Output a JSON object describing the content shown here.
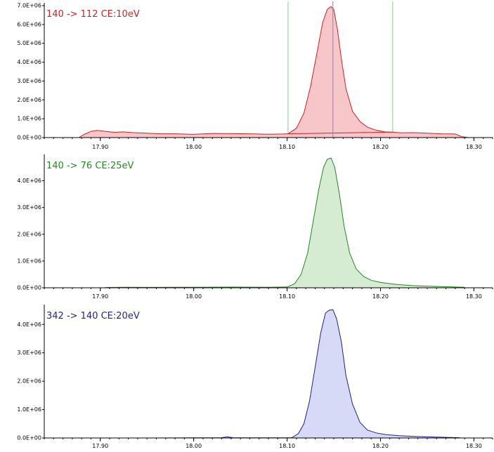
{
  "chart_data": [
    {
      "type": "area",
      "title": "140 -> 112 CE:10eV",
      "color": "#cc2222",
      "fill": "#f7c6c9",
      "xlim": [
        17.84,
        18.32
      ],
      "ylim": [
        0,
        7000000
      ],
      "x_ticks": [
        17.9,
        18.0,
        18.1,
        18.2,
        18.3
      ],
      "x_tick_labels": [
        "17.90",
        "18.00",
        "18.10",
        "18.20",
        "18.30"
      ],
      "y_ticks": [
        0,
        1000000,
        2000000,
        3000000,
        4000000,
        5000000,
        6000000,
        7000000
      ],
      "y_tick_labels": [
        "0.0E+00",
        "1.0E+06",
        "2.0E+06",
        "3.0E+06",
        "4.0E+06",
        "5.0E+06",
        "6.0E+06",
        "7.0E+06"
      ],
      "integration_start": 18.101,
      "integration_end": 18.213,
      "retention_time": 18.149,
      "series": [
        {
          "x": [
            17.877,
            17.882,
            17.89,
            17.897,
            17.905,
            17.915,
            17.925,
            17.935,
            17.95,
            17.965,
            17.98,
            18.0,
            18.02,
            18.04,
            18.06,
            18.08,
            18.095,
            18.101,
            18.11,
            18.118,
            18.125,
            18.132,
            18.138,
            18.143,
            18.147,
            18.15,
            18.154,
            18.158,
            18.163,
            18.17,
            18.178,
            18.186,
            18.195,
            18.205,
            18.213,
            18.222,
            18.235,
            18.25,
            18.265,
            18.28,
            18.287,
            18.294
          ],
          "y": [
            0,
            150000,
            330000,
            380000,
            330000,
            280000,
            300000,
            260000,
            230000,
            200000,
            200000,
            170000,
            220000,
            210000,
            200000,
            180000,
            190000,
            200000,
            500000,
            1300000,
            2700000,
            4500000,
            6100000,
            6800000,
            6950000,
            6800000,
            5700000,
            4200000,
            2600000,
            1400000,
            850000,
            550000,
            400000,
            300000,
            290000,
            250000,
            260000,
            230000,
            200000,
            190000,
            50000,
            0
          ]
        }
      ]
    },
    {
      "type": "area",
      "title": "140 -> 76 CE:25eV",
      "color": "#228822",
      "fill": "#d6ecd2",
      "xlim": [
        17.84,
        18.32
      ],
      "ylim": [
        0,
        4880000
      ],
      "x_ticks": [
        17.9,
        18.0,
        18.1,
        18.2,
        18.3
      ],
      "x_tick_labels": [
        "17.90",
        "18.00",
        "18.10",
        "18.20",
        "18.30"
      ],
      "y_ticks": [
        0,
        1000000,
        2000000,
        3000000,
        4000000
      ],
      "y_tick_labels": [
        "0.0E+00",
        "1.0E+06",
        "2.0E+06",
        "3.0E+06",
        "4.0E+06"
      ],
      "series": [
        {
          "x": [
            17.905,
            17.925,
            17.95,
            18.0,
            18.04,
            18.08,
            18.1,
            18.108,
            18.115,
            18.122,
            18.128,
            18.134,
            18.139,
            18.143,
            18.147,
            18.151,
            18.156,
            18.161,
            18.167,
            18.174,
            18.182,
            18.19,
            18.2,
            18.215,
            18.235,
            18.26,
            18.29
          ],
          "y": [
            10000,
            20000,
            15000,
            20000,
            25000,
            20000,
            30000,
            150000,
            500000,
            1300000,
            2500000,
            3700000,
            4500000,
            4800000,
            4850000,
            4500000,
            3500000,
            2300000,
            1300000,
            700000,
            420000,
            280000,
            200000,
            130000,
            80000,
            50000,
            20000
          ]
        }
      ]
    },
    {
      "type": "area",
      "title": "342 -> 140 CE:20eV",
      "color": "#222288",
      "fill": "#d6daf6",
      "xlim": [
        17.84,
        18.32
      ],
      "ylim": [
        0,
        4600000
      ],
      "x_ticks": [
        17.9,
        18.0,
        18.1,
        18.2,
        18.3
      ],
      "x_tick_labels": [
        "17.90",
        "18.00",
        "18.10",
        "18.20",
        "18.30"
      ],
      "y_ticks": [
        0,
        1000000,
        2000000,
        3000000,
        4000000
      ],
      "y_tick_labels": [
        "0.0E+00",
        "1.0E+06",
        "2.0E+06",
        "3.0E+06",
        "4.0E+06"
      ],
      "series": [
        {
          "x": [
            17.86,
            17.9,
            17.95,
            18.0,
            18.03,
            18.036,
            18.042,
            18.05,
            18.08,
            18.105,
            18.112,
            18.118,
            18.124,
            18.13,
            18.136,
            18.141,
            18.145,
            18.149,
            18.153,
            18.158,
            18.163,
            18.17,
            18.178,
            18.186,
            18.195,
            18.205,
            18.22,
            18.24,
            18.26,
            18.285
          ],
          "y": [
            0,
            0,
            0,
            5000,
            10000,
            40000,
            10000,
            5000,
            5000,
            10000,
            150000,
            500000,
            1300000,
            2500000,
            3700000,
            4400000,
            4500000,
            4520000,
            4200000,
            3400000,
            2200000,
            1200000,
            550000,
            280000,
            180000,
            120000,
            80000,
            50000,
            30000,
            10000
          ]
        }
      ]
    }
  ]
}
